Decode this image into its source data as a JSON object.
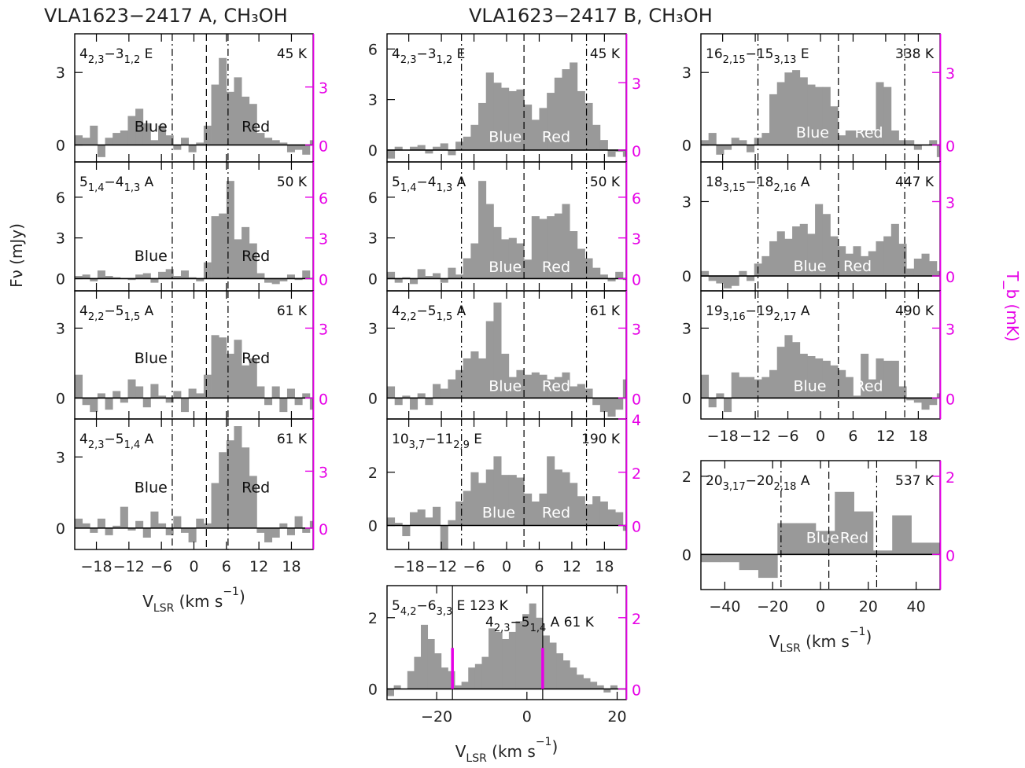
{
  "titles": {
    "left": "VLA1623−2417 A, CH₃OH",
    "middle": "VLA1623−2417 B, CH₃OH"
  },
  "axis_labels": {
    "ylabel_left": "Fν (mJy)",
    "ylabel_right": "T_b (mK)",
    "xlabel": "V_LSR (km s⁻¹)"
  },
  "colors": {
    "bars": "#999999",
    "right_axis": "#e600e6",
    "text": "#111111"
  },
  "chart_data": [
    {
      "id": "A1",
      "type": "bar",
      "col": 0,
      "row": 0,
      "transition": [
        "4",
        "2,3",
        "−3",
        "1,2",
        " E"
      ],
      "eup": "45 K",
      "xlim": [
        -22,
        22
      ],
      "ylim": [
        -0.7,
        4.6
      ],
      "yticks": [
        0,
        3
      ],
      "tb_ticks": [
        0,
        3,
        6
      ],
      "tb_scale": 1.25,
      "lines": [
        {
          "x": -4,
          "style": "dashdot"
        },
        {
          "x": 2.3,
          "style": "dash"
        },
        {
          "x": 6.3,
          "style": "dashdot"
        }
      ],
      "blue": {
        "text": "Blue",
        "x": -11
      },
      "red": {
        "text": "Red",
        "x": 8.8
      },
      "label_y": 0.55,
      "bin_start": -22,
      "bin_width": 1.4,
      "values": [
        0.4,
        0.3,
        0.8,
        -0.5,
        0.3,
        0.5,
        0.6,
        1.2,
        1.5,
        0.9,
        0.2,
        0.8,
        0.4,
        -0.2,
        0.3,
        -0.3,
        0.1,
        0.8,
        2.5,
        3.6,
        2.2,
        2.8,
        2.0,
        1.7,
        0.5,
        0.3,
        0.2,
        0.1,
        -0.3,
        -0.2,
        -0.4,
        0.2,
        -0.3,
        -0.1,
        0.6,
        -0.2,
        -0.1,
        -0.3
      ]
    },
    {
      "id": "A2",
      "type": "bar",
      "col": 0,
      "row": 1,
      "transition": [
        "5",
        "1,4",
        "−4",
        "1,3",
        " A"
      ],
      "eup": "50 K",
      "xlim": [
        -22,
        22
      ],
      "ylim": [
        -0.9,
        8.6
      ],
      "yticks": [
        0,
        3,
        6
      ],
      "tb_ticks": [
        0,
        3,
        6,
        9
      ],
      "tb_scale": 1.0,
      "lines": [
        {
          "x": -4,
          "style": "dashdot"
        },
        {
          "x": 2.3,
          "style": "dash"
        },
        {
          "x": 6.3,
          "style": "dashdot"
        }
      ],
      "blue": {
        "text": "Blue",
        "x": -11
      },
      "red": {
        "text": "Red",
        "x": 8.8
      },
      "label_y": 1.3,
      "bin_start": -22,
      "bin_width": 1.4,
      "values": [
        0.2,
        0.3,
        -0.2,
        0.6,
        0.2,
        0.1,
        0.0,
        -0.1,
        0.3,
        0.4,
        -0.3,
        0.5,
        0.7,
        0.2,
        0.6,
        0.1,
        -0.2,
        1.2,
        4.6,
        4.8,
        7.2,
        2.9,
        3.8,
        2.6,
        0.4,
        -0.3,
        -0.4,
        -0.2,
        0.3,
        -0.1,
        0.6,
        0.0,
        -0.5,
        0.1,
        -0.3,
        -0.6,
        0.2,
        -0.4
      ]
    },
    {
      "id": "A3",
      "type": "bar",
      "col": 0,
      "row": 2,
      "transition": [
        "4",
        "2,2",
        "−5",
        "1,5",
        " A"
      ],
      "eup": "61 K",
      "xlim": [
        -22,
        22
      ],
      "ylim": [
        -0.9,
        4.6
      ],
      "yticks": [
        0,
        3
      ],
      "tb_ticks": [
        0,
        3
      ],
      "tb_scale": 1.0,
      "lines": [
        {
          "x": -4,
          "style": "dashdot"
        },
        {
          "x": 2.3,
          "style": "dash"
        },
        {
          "x": 6.3,
          "style": "dashdot"
        }
      ],
      "blue": {
        "text": "Blue",
        "x": -11
      },
      "red": {
        "text": "Red",
        "x": 8.8
      },
      "label_y": 1.5,
      "bin_start": -22,
      "bin_width": 1.4,
      "values": [
        1.0,
        -0.3,
        -0.6,
        0.2,
        -0.5,
        0.3,
        -0.2,
        0.8,
        0.5,
        -0.4,
        0.6,
        0.1,
        -0.2,
        0.3,
        -0.6,
        0.4,
        0.2,
        1.0,
        2.7,
        2.6,
        1.9,
        2.5,
        1.4,
        1.7,
        0.5,
        -0.3,
        0.5,
        -0.6,
        0.4,
        -0.3,
        0.2,
        -0.5,
        0.3,
        0.5,
        -0.4,
        0.8,
        -0.2,
        0.3
      ]
    },
    {
      "id": "A4",
      "type": "bar",
      "col": 0,
      "row": 3,
      "transition": [
        "4",
        "2,3",
        "−5",
        "1,4",
        " A"
      ],
      "eup": "61 K",
      "xlim": [
        -22,
        22
      ],
      "ylim": [
        -0.9,
        4.6
      ],
      "yticks": [
        0,
        3
      ],
      "tb_ticks": [
        0,
        3,
        6
      ],
      "tb_scale": 1.25,
      "lines": [
        {
          "x": -4,
          "style": "dashdot"
        },
        {
          "x": 2.3,
          "style": "dash"
        },
        {
          "x": 6.3,
          "style": "dashdot"
        }
      ],
      "blue": {
        "text": "Blue",
        "x": -11
      },
      "red": {
        "text": "Red",
        "x": 8.8
      },
      "label_y": 1.5,
      "bin_start": -22,
      "bin_width": 1.4,
      "values": [
        0.4,
        0.2,
        -0.2,
        0.4,
        -0.3,
        0.1,
        0.9,
        -0.1,
        0.3,
        -0.4,
        0.7,
        0.2,
        -0.3,
        0.5,
        -0.2,
        -0.6,
        0.4,
        0.2,
        1.9,
        3.2,
        3.7,
        4.3,
        3.4,
        2.2,
        -0.2,
        -0.6,
        -0.4,
        0.2,
        -0.3,
        0.5,
        -0.2,
        0.3,
        0.4,
        -0.4,
        0.2,
        -0.3,
        0.1,
        -0.5
      ]
    },
    {
      "id": "B1",
      "type": "bar",
      "col": 1,
      "row": 0,
      "transition": [
        "4",
        "2,3",
        "−3",
        "1,2",
        " E"
      ],
      "eup": "45 K",
      "xlim": [
        -22,
        22
      ],
      "ylim": [
        -0.7,
        6.9
      ],
      "yticks": [
        0,
        3,
        6
      ],
      "tb_ticks": [
        0,
        3,
        6,
        9
      ],
      "tb_scale": 0.75,
      "lines": [
        {
          "x": -8.3,
          "style": "dashdot"
        },
        {
          "x": 3.2,
          "style": "dash"
        },
        {
          "x": 14.7,
          "style": "dashdot"
        }
      ],
      "blue": {
        "text": "Blue",
        "x": -3.3
      },
      "red": {
        "text": "Red",
        "x": 6.5
      },
      "label_y": 0.5,
      "label_fill": "white",
      "bin_start": -22,
      "bin_width": 1.4,
      "values": [
        -0.5,
        0.2,
        0.0,
        0.2,
        0.3,
        -0.2,
        0.2,
        0.4,
        -0.3,
        0.5,
        0.8,
        1.5,
        2.8,
        4.6,
        4.0,
        3.7,
        3.5,
        3.6,
        2.7,
        1.8,
        2.5,
        3.4,
        4.3,
        4.8,
        5.2,
        3.5,
        2.8,
        1.5,
        0.6,
        -0.4,
        -0.1,
        -0.4
      ]
    },
    {
      "id": "B2",
      "type": "bar",
      "col": 1,
      "row": 1,
      "transition": [
        "5",
        "1,4",
        "−4",
        "1,3",
        " A"
      ],
      "eup": "50 K",
      "xlim": [
        -22,
        22
      ],
      "ylim": [
        -0.9,
        8.6
      ],
      "yticks": [
        0,
        3,
        6
      ],
      "tb_ticks": [
        0,
        3,
        6,
        9
      ],
      "tb_scale": 1.0,
      "lines": [
        {
          "x": -8.3,
          "style": "dashdot"
        },
        {
          "x": 3.2,
          "style": "dash"
        },
        {
          "x": 14.7,
          "style": "dashdot"
        }
      ],
      "blue": {
        "text": "Blue",
        "x": -3.3
      },
      "red": {
        "text": "Red",
        "x": 6.5
      },
      "label_y": 0.5,
      "label_fill": "white",
      "bin_start": -22,
      "bin_width": 1.4,
      "values": [
        0.5,
        -0.3,
        0.1,
        -0.4,
        0.7,
        0.2,
        0.4,
        -0.3,
        0.8,
        0.3,
        1.5,
        2.6,
        7.2,
        5.5,
        3.8,
        2.9,
        3.0,
        2.6,
        1.4,
        4.6,
        4.4,
        4.6,
        4.8,
        5.5,
        3.5,
        2.2,
        1.5,
        0.8,
        0.3,
        -0.2,
        0.5,
        -0.1
      ]
    },
    {
      "id": "B3",
      "type": "bar",
      "col": 1,
      "row": 2,
      "transition": [
        "4",
        "2,2",
        "−5",
        "1,5",
        " A"
      ],
      "eup": "61 K",
      "xlim": [
        -22,
        22
      ],
      "ylim": [
        -0.9,
        4.6
      ],
      "yticks": [
        0,
        3
      ],
      "tb_ticks": [
        0,
        3
      ],
      "tb_scale": 1.0,
      "lines": [
        {
          "x": -8.3,
          "style": "dashdot"
        },
        {
          "x": 3.2,
          "style": "dash"
        },
        {
          "x": 14.7,
          "style": "dashdot"
        }
      ],
      "blue": {
        "text": "Blue",
        "x": -3.3
      },
      "red": {
        "text": "Red",
        "x": 6.5
      },
      "label_y": 0.3,
      "label_fill": "white",
      "bin_start": -22,
      "bin_width": 1.4,
      "values": [
        0.5,
        -0.3,
        0.1,
        -0.5,
        0.2,
        -0.3,
        0.6,
        0.4,
        0.8,
        1.2,
        1.7,
        2.0,
        1.7,
        3.3,
        4.1,
        1.9,
        0.9,
        1.2,
        1.0,
        1.1,
        1.0,
        0.8,
        0.9,
        1.1,
        0.5,
        0.6,
        0.4,
        -0.3,
        -0.6,
        -0.8,
        -0.5,
        0.8
      ]
    },
    {
      "id": "B4",
      "type": "bar",
      "col": 1,
      "row": 3,
      "transition": [
        "10",
        "3,7",
        "−11",
        "2,9",
        " E"
      ],
      "eup": "190 K",
      "xlim": [
        -22,
        22
      ],
      "ylim": [
        -0.9,
        4.0
      ],
      "yticks": [
        0,
        2
      ],
      "tb_ticks": [
        0,
        2,
        4
      ],
      "tb_scale": 1.0,
      "lines": [
        {
          "x": -8.3,
          "style": "dashdot"
        },
        {
          "x": 3.2,
          "style": "dash"
        },
        {
          "x": 14.7,
          "style": "dashdot"
        }
      ],
      "blue": {
        "text": "Blue",
        "x": -4.5
      },
      "red": {
        "text": "Red",
        "x": 6.5
      },
      "label_y": 0.3,
      "label_fill": "white",
      "bin_start": -22,
      "bin_width": 1.4,
      "values": [
        0.3,
        0.1,
        -0.4,
        0.5,
        0.6,
        0.3,
        0.7,
        -0.9,
        0.2,
        0.9,
        1.3,
        2.0,
        1.6,
        2.1,
        2.6,
        1.9,
        1.9,
        1.8,
        1.2,
        0.9,
        1.2,
        2.6,
        2.1,
        2.0,
        1.6,
        1.1,
        0.8,
        1.1,
        0.9,
        0.6,
        0.5,
        -0.2
      ]
    },
    {
      "id": "B5",
      "type": "bar",
      "col": 1,
      "row": 4,
      "transition": [
        "5",
        "4,2",
        "−6",
        "3,3",
        " E 123 K"
      ],
      "eup": "",
      "transition2": [
        "4",
        "2,3",
        "−5",
        "1,4",
        " A 61 K"
      ],
      "xlim": [
        -31,
        22
      ],
      "xticks": [
        -20,
        0,
        20
      ],
      "ylim": [
        -0.3,
        2.9
      ],
      "yticks": [
        0,
        2
      ],
      "tb_ticks": [
        0,
        2
      ],
      "tb_scale": 1.0,
      "lines": [
        {
          "x": -16.5,
          "style": "solid"
        },
        {
          "x": 3.5,
          "style": "solid"
        }
      ],
      "magenta_marks": [
        {
          "x": -16.5,
          "y0": 0.0,
          "y1": 1.15
        },
        {
          "x": 3.5,
          "y0": 0.0,
          "y1": 1.15
        }
      ],
      "bin_start": -31,
      "bin_width": 1.5,
      "values": [
        -0.2,
        0.1,
        0.0,
        0.5,
        0.9,
        1.8,
        1.4,
        1.0,
        0.6,
        0.5,
        0.1,
        0.2,
        0.6,
        0.7,
        0.9,
        1.7,
        1.6,
        1.4,
        1.6,
        1.9,
        2.1,
        2.4,
        2.0,
        1.5,
        1.3,
        1.0,
        0.8,
        0.6,
        0.4,
        0.3,
        0.2,
        0.1,
        -0.1,
        0.1,
        0.0
      ]
    },
    {
      "id": "C1",
      "type": "bar",
      "col": 2,
      "row": 0,
      "transition": [
        "16",
        "2,15",
        "−15",
        "3,13",
        " E"
      ],
      "eup": "338 K",
      "xlim": [
        -22,
        22
      ],
      "ylim": [
        -0.7,
        4.6
      ],
      "yticks": [
        0,
        3
      ],
      "tb_ticks": [
        0,
        3
      ],
      "tb_scale": 1.0,
      "lines": [
        {
          "x": -11.5,
          "style": "dashdot"
        },
        {
          "x": 3.3,
          "style": "dash"
        },
        {
          "x": 15.5,
          "style": "dashdot"
        }
      ],
      "blue": {
        "text": "Blue",
        "x": -4.5
      },
      "red": {
        "text": "Red",
        "x": 6.3
      },
      "label_y": 0.3,
      "label_fill": "white",
      "bin_start": -22,
      "bin_width": 1.4,
      "values": [
        0.2,
        0.5,
        -0.4,
        -0.2,
        0.3,
        0.2,
        -0.3,
        0.3,
        0.5,
        2.1,
        2.6,
        3.0,
        3.1,
        2.8,
        2.5,
        2.4,
        2.4,
        1.6,
        0.4,
        0.6,
        0.6,
        0.6,
        0.6,
        2.6,
        2.4,
        0.6,
        0.2,
        0.2,
        -0.2,
        0.0,
        0.2,
        -0.5
      ]
    },
    {
      "id": "C2",
      "type": "bar",
      "col": 2,
      "row": 1,
      "transition": [
        "18",
        "3,15",
        "−18",
        "2,16",
        " A"
      ],
      "eup": "447 K",
      "xlim": [
        -22,
        22
      ],
      "ylim": [
        -0.6,
        4.6
      ],
      "yticks": [
        0,
        3
      ],
      "tb_ticks": [
        0,
        3
      ],
      "tb_scale": 1.0,
      "lines": [
        {
          "x": -11.5,
          "style": "dashdot"
        },
        {
          "x": 3.3,
          "style": "dash"
        },
        {
          "x": 15.5,
          "style": "dashdot"
        }
      ],
      "blue": {
        "text": "Blue",
        "x": -5.0
      },
      "red": {
        "text": "Red",
        "x": 4.2
      },
      "label_y": 0.2,
      "label_fill": "white",
      "bin_start": -22,
      "bin_width": 1.4,
      "values": [
        0.2,
        -0.2,
        -0.3,
        -0.5,
        -0.4,
        0.2,
        -0.2,
        0.5,
        0.8,
        1.4,
        1.8,
        1.5,
        2.0,
        2.1,
        1.7,
        2.9,
        2.5,
        1.6,
        1.2,
        0.9,
        1.2,
        0.8,
        1.0,
        1.4,
        1.6,
        2.1,
        1.3,
        0.3,
        0.7,
        0.9,
        0.6,
        0.2
      ]
    },
    {
      "id": "C3",
      "type": "bar",
      "col": 2,
      "row": 2,
      "transition": [
        "19",
        "3,16",
        "−19",
        "2,17",
        " A"
      ],
      "eup": "490 K",
      "xlim": [
        -22,
        22
      ],
      "ylim": [
        -0.9,
        4.6
      ],
      "yticks": [
        0,
        3
      ],
      "tb_ticks": [
        0,
        3
      ],
      "tb_scale": 1.0,
      "lines": [
        {
          "x": -11.5,
          "style": "dashdot"
        },
        {
          "x": 3.3,
          "style": "dash"
        },
        {
          "x": 15.5,
          "style": "dashdot"
        }
      ],
      "blue": {
        "text": "Blue",
        "x": -5.0
      },
      "red": {
        "text": "Red",
        "x": 6.3
      },
      "label_y": 0.3,
      "label_fill": "white",
      "bin_start": -22,
      "bin_width": 1.4,
      "values": [
        1.0,
        -0.4,
        0.2,
        -0.6,
        1.1,
        0.9,
        0.9,
        0.8,
        0.9,
        1.2,
        2.2,
        2.7,
        2.4,
        1.9,
        1.8,
        1.7,
        1.6,
        1.4,
        1.2,
        0.9,
        0.1,
        1.9,
        0.8,
        1.7,
        1.6,
        1.6,
        0.5,
        -0.1,
        -0.2,
        -0.5,
        -0.3,
        0.2
      ]
    },
    {
      "id": "C4",
      "type": "bar",
      "col": 2,
      "row": 3,
      "transition": [
        "20",
        "3,17",
        "−20",
        "2,18",
        " A"
      ],
      "eup": "537 K",
      "xlim": [
        -50,
        50
      ],
      "xticks": [
        -40,
        -20,
        0,
        20,
        40
      ],
      "ylim": [
        -0.9,
        2.4
      ],
      "yticks": [
        0,
        2
      ],
      "tb_ticks": [
        0,
        2
      ],
      "tb_scale": 1.0,
      "lines": [
        {
          "x": -16.5,
          "style": "dashdot"
        },
        {
          "x": 3.5,
          "style": "dash"
        },
        {
          "x": 23.5,
          "style": "dashdot"
        }
      ],
      "blue": {
        "text": "Blue",
        "x": -6
      },
      "red": {
        "text": "Red",
        "x": 8.2
      },
      "label_y": 0.3,
      "label_fill": "white",
      "bin_start": -50,
      "bin_width": 8,
      "values": [
        -0.2,
        -0.2,
        -0.4,
        -0.6,
        0.8,
        0.8,
        0.6,
        1.6,
        1.1,
        0.1,
        1.0,
        0.3,
        0.3
      ]
    }
  ],
  "x_tick_labels_small": [
    "−18",
    "−12",
    "−6",
    "0",
    "6",
    "12",
    "18"
  ]
}
